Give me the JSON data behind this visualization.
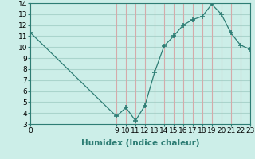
{
  "x": [
    0,
    9,
    10,
    11,
    12,
    13,
    14,
    15,
    16,
    17,
    18,
    19,
    20,
    21,
    22,
    23
  ],
  "y": [
    11.3,
    3.7,
    4.5,
    3.3,
    4.7,
    7.7,
    10.1,
    11.0,
    12.0,
    12.5,
    12.8,
    13.9,
    13.0,
    11.3,
    10.2,
    9.8
  ],
  "line_color": "#2d7d74",
  "marker": "P",
  "marker_size": 2.5,
  "bg_color": "#cceee8",
  "grid_color_h": "#aad4cc",
  "grid_color_v": "#d4aaaa",
  "xlabel": "Humidex (Indice chaleur)",
  "xlim": [
    0,
    23
  ],
  "ylim": [
    3,
    14
  ],
  "xticks": [
    0,
    9,
    10,
    11,
    12,
    13,
    14,
    15,
    16,
    17,
    18,
    19,
    20,
    21,
    22,
    23
  ],
  "yticks": [
    3,
    4,
    5,
    6,
    7,
    8,
    9,
    10,
    11,
    12,
    13,
    14
  ],
  "xlabel_fontsize": 7.5,
  "tick_fontsize": 6.5
}
